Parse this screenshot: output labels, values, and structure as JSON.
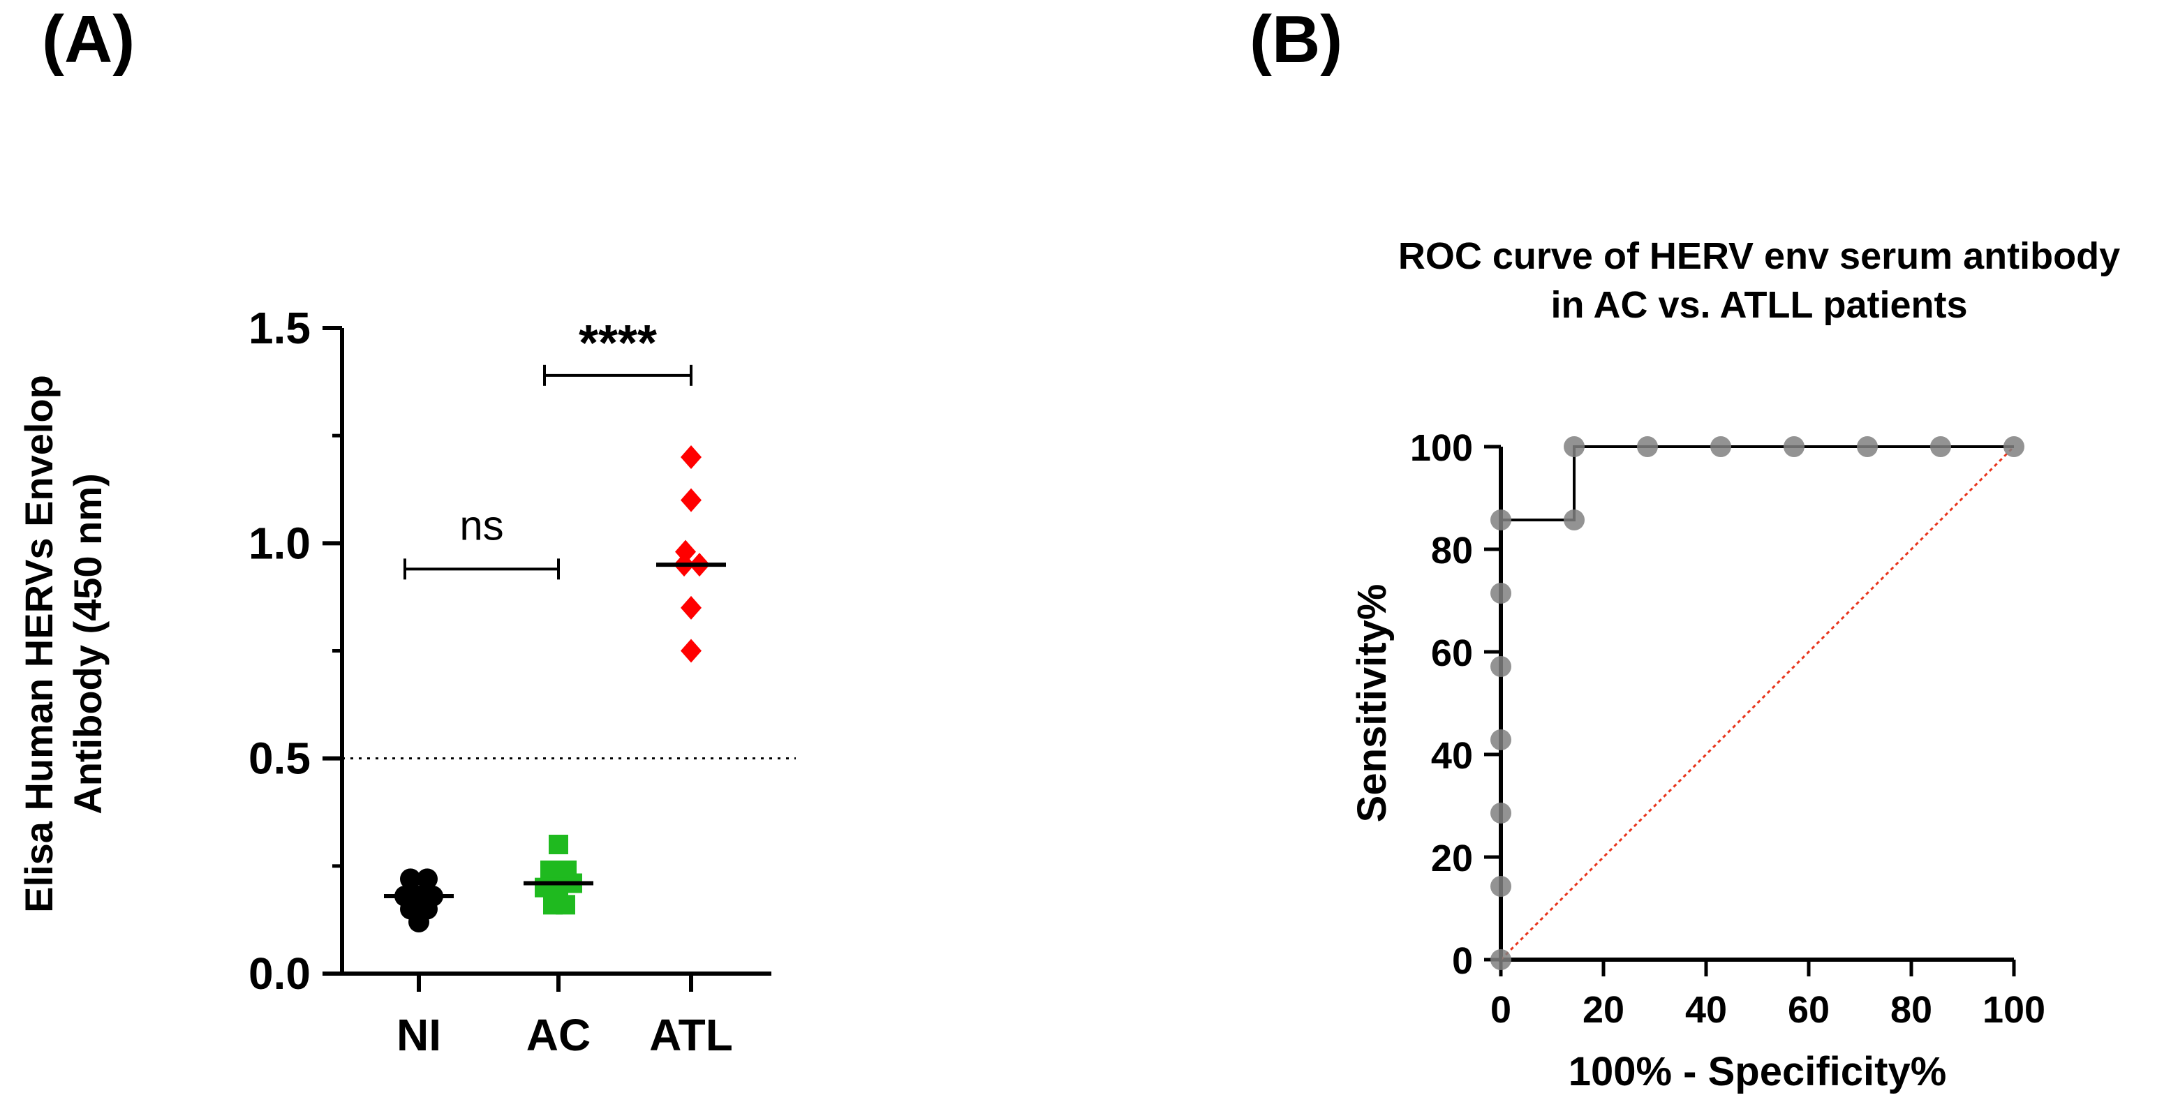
{
  "panels": {
    "a_label": "(A)",
    "b_label": "(B)"
  },
  "chart_data": [
    {
      "type": "scatter",
      "panel": "A",
      "title": "",
      "ylabel_line1": "Elisa Human HERVs Envelop",
      "ylabel_line2": "Antibody (450 nm)",
      "xlabel": "",
      "categories": [
        "NI",
        "AC",
        "ATL"
      ],
      "ylim": [
        0,
        1.5
      ],
      "yticks": [
        0,
        0.5,
        1.0,
        1.5
      ],
      "ytick_labels": [
        "0.0",
        "0.5",
        "1.0",
        "1.5"
      ],
      "cutoff": 0.5,
      "series": [
        {
          "name": "NI",
          "marker": "circle",
          "color": "#000000",
          "points": [
            [
              -0.12,
              0.22
            ],
            [
              0.12,
              0.22
            ],
            [
              -0.2,
              0.18
            ],
            [
              0.0,
              0.18
            ],
            [
              0.2,
              0.18
            ],
            [
              -0.12,
              0.15
            ],
            [
              0.12,
              0.15
            ],
            [
              0.0,
              0.12
            ]
          ],
          "median": 0.18
        },
        {
          "name": "AC",
          "marker": "square",
          "color": "#1fba1f",
          "points": [
            [
              0.0,
              0.3
            ],
            [
              -0.12,
              0.24
            ],
            [
              0.12,
              0.24
            ],
            [
              -0.2,
              0.2
            ],
            [
              0.2,
              0.21
            ],
            [
              0.0,
              0.2
            ],
            [
              -0.08,
              0.16
            ],
            [
              0.1,
              0.16
            ]
          ],
          "median": 0.21
        },
        {
          "name": "ATL",
          "marker": "diamond",
          "color": "#ff0000",
          "points": [
            [
              0.0,
              1.2
            ],
            [
              0.0,
              1.1
            ],
            [
              -0.08,
              0.98
            ],
            [
              0.12,
              0.95
            ],
            [
              -0.1,
              0.95
            ],
            [
              0.0,
              0.85
            ],
            [
              0.0,
              0.75
            ]
          ],
          "median": 0.95
        }
      ],
      "comparisons": [
        {
          "from": "NI",
          "to": "AC",
          "y": 0.94,
          "label": "ns"
        },
        {
          "from": "AC",
          "to": "ATL",
          "y": 1.39,
          "label": "****"
        }
      ]
    },
    {
      "type": "line",
      "panel": "B",
      "title": "ROC curve of HERV env serum antibody",
      "subtitle": "in AC vs. ATLL patients",
      "xlabel": "100% - Specificity%",
      "ylabel": "Sensitivity%",
      "xlim": [
        0,
        100
      ],
      "ylim": [
        0,
        100
      ],
      "xticks": [
        0,
        20,
        40,
        60,
        80,
        100
      ],
      "yticks": [
        0,
        20,
        40,
        60,
        80,
        100
      ],
      "series": [
        {
          "name": "ROC",
          "color": "#808080",
          "x": [
            0,
            0,
            0,
            0,
            0,
            0,
            0,
            14.29,
            14.29,
            28.57,
            42.86,
            57.14,
            71.43,
            85.71,
            100
          ],
          "y": [
            0,
            14.29,
            28.57,
            42.86,
            57.14,
            71.43,
            85.71,
            85.71,
            100,
            100,
            100,
            100,
            100,
            100,
            100
          ]
        }
      ],
      "reference_line": {
        "x": [
          0,
          100
        ],
        "y": [
          0,
          100
        ],
        "color": "#e8351c"
      }
    }
  ]
}
